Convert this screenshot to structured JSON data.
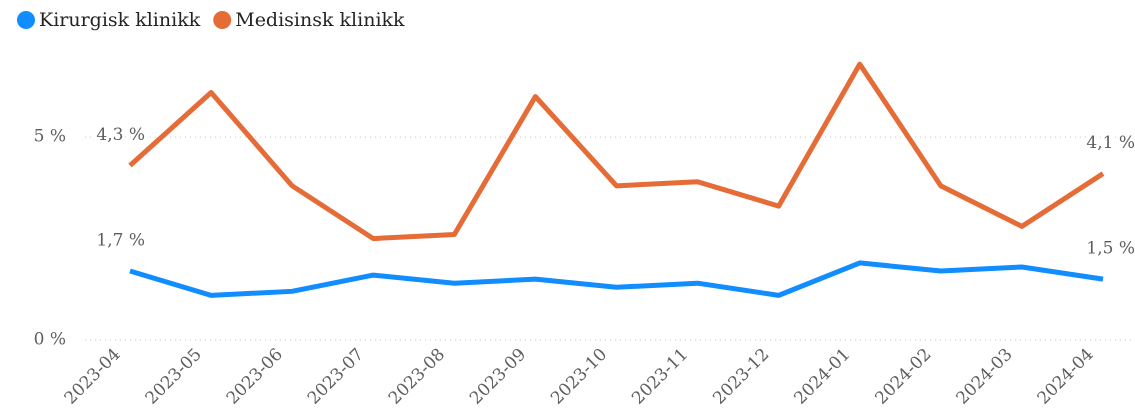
{
  "chart_data": {
    "type": "line",
    "categories": [
      "2023-04",
      "2023-05",
      "2023-06",
      "2023-07",
      "2023-08",
      "2023-09",
      "2023-10",
      "2023-11",
      "2023-12",
      "2024-01",
      "2024-02",
      "2024-03",
      "2024-04"
    ],
    "series": [
      {
        "name": "Kirurgisk klinikk",
        "color": "#118dff",
        "values": [
          1.7,
          1.1,
          1.2,
          1.6,
          1.4,
          1.5,
          1.3,
          1.4,
          1.1,
          1.9,
          1.7,
          1.8,
          1.5
        ],
        "value_labels": [
          "1,7 %",
          null,
          null,
          null,
          null,
          null,
          null,
          null,
          null,
          null,
          null,
          null,
          "1,5 %"
        ]
      },
      {
        "name": "Medisinsk klinikk",
        "color": "#e66c37",
        "values": [
          4.3,
          6.1,
          3.8,
          2.5,
          2.6,
          6.0,
          3.8,
          3.9,
          3.3,
          6.8,
          3.8,
          2.8,
          4.1
        ],
        "value_labels": [
          "4,3 %",
          null,
          null,
          null,
          null,
          null,
          null,
          null,
          null,
          null,
          null,
          null,
          "4,1 %"
        ]
      }
    ],
    "ylim": [
      0,
      7
    ],
    "yticks": [
      {
        "value": 0,
        "label": "0 %"
      },
      {
        "value": 5,
        "label": "5 %"
      }
    ],
    "grid": true,
    "legend": "top-left"
  }
}
